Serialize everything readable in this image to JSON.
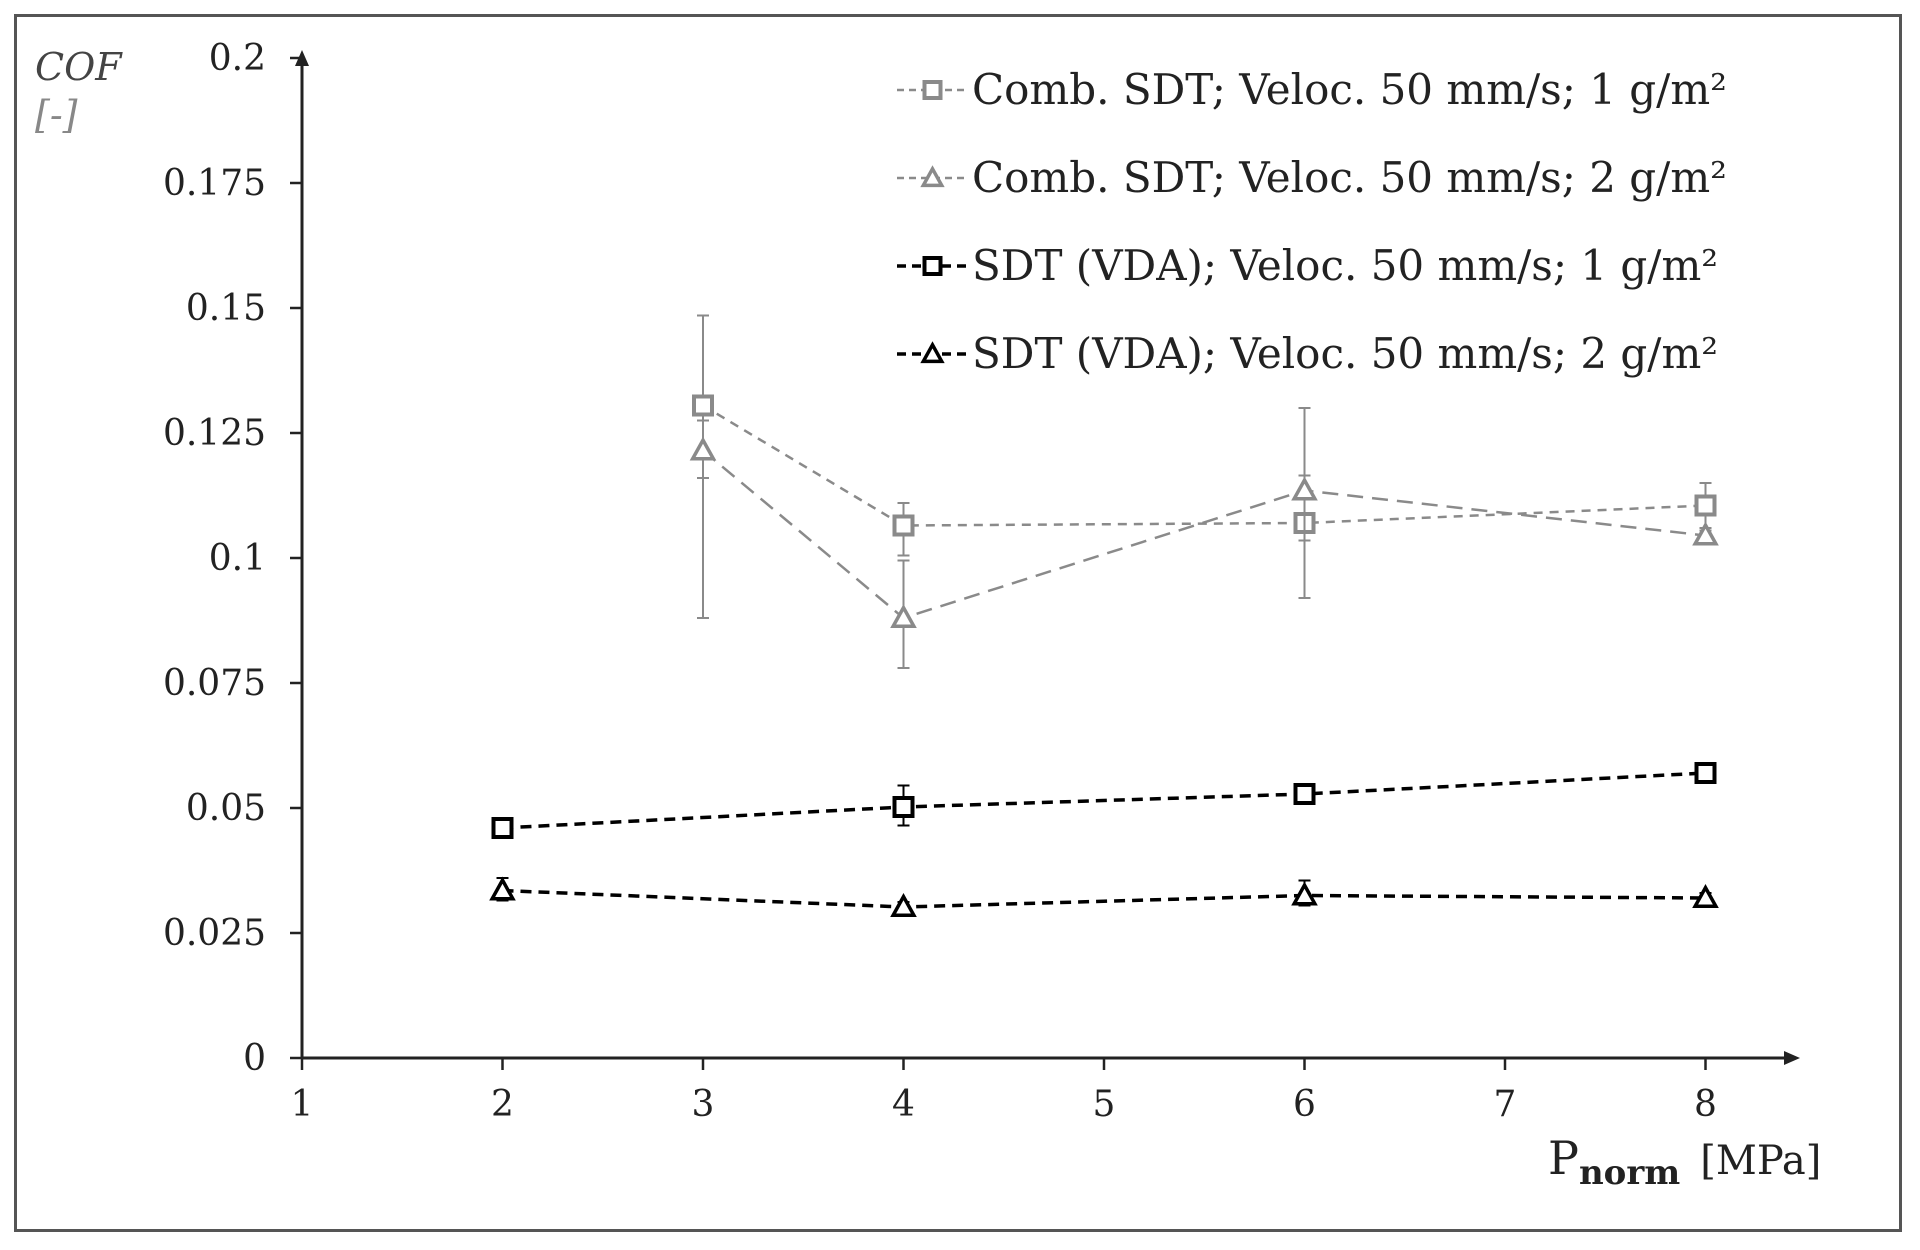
{
  "chart_data": {
    "type": "line",
    "ylabel": "COF",
    "ylabel_unit": "[-]",
    "xlabel_main": "P",
    "xlabel_sub": "norm",
    "xlabel_unit": "[MPa]",
    "xlim": [
      1,
      8.5
    ],
    "ylim": [
      0,
      0.2
    ],
    "x_ticks": [
      "1",
      "2",
      "3",
      "4",
      "5",
      "6",
      "7",
      "8"
    ],
    "y_ticks": [
      "0",
      "0.025",
      "0.05",
      "0.075",
      "0.1",
      "0.125",
      "0.15",
      "0.175",
      "0.2"
    ],
    "legend_position": "top-right",
    "series": [
      {
        "name": "Comb. SDT; Veloc.  50 mm/s;  1 g/m²",
        "marker": "square",
        "color": "#8a8a8a",
        "dash": "short",
        "x": [
          3,
          4,
          6,
          8
        ],
        "y": [
          0.1305,
          0.1065,
          0.107,
          0.1105
        ],
        "err_low": [
          0.088,
          0.1005,
          0.092,
          0.1055
        ],
        "err_high": [
          0.1485,
          0.111,
          0.13,
          0.115
        ]
      },
      {
        "name": "Comb. SDT; Veloc.  50 mm/s;  2 g/m²",
        "marker": "triangle",
        "color": "#8a8a8a",
        "dash": "long",
        "x": [
          3,
          4,
          6,
          8
        ],
        "y": [
          0.1215,
          0.088,
          0.1135,
          0.1045
        ],
        "err_low": [
          0.116,
          0.078,
          0.1035,
          0.103
        ],
        "err_high": [
          0.1275,
          0.0995,
          0.1165,
          0.106
        ]
      },
      {
        "name": "SDT (VDA); Veloc.  50 mm/s;  1 g/m²",
        "marker": "square",
        "color": "#000000",
        "dash": "medium",
        "x": [
          2,
          4,
          6,
          8
        ],
        "y": [
          0.046,
          0.0502,
          0.0528,
          0.057
        ],
        "err_low": [
          0.0448,
          0.0465,
          0.0515,
          0.0558
        ],
        "err_high": [
          0.0472,
          0.0545,
          0.0542,
          0.0582
        ]
      },
      {
        "name": "SDT (VDA); Veloc.  50 mm/s;  2 g/m²",
        "marker": "triangle",
        "color": "#000000",
        "dash": "medium",
        "x": [
          2,
          4,
          6,
          8
        ],
        "y": [
          0.0335,
          0.0302,
          0.0325,
          0.032
        ],
        "err_low": [
          0.0315,
          0.0292,
          0.0305,
          0.031
        ],
        "err_high": [
          0.036,
          0.0312,
          0.0355,
          0.033
        ]
      }
    ]
  }
}
